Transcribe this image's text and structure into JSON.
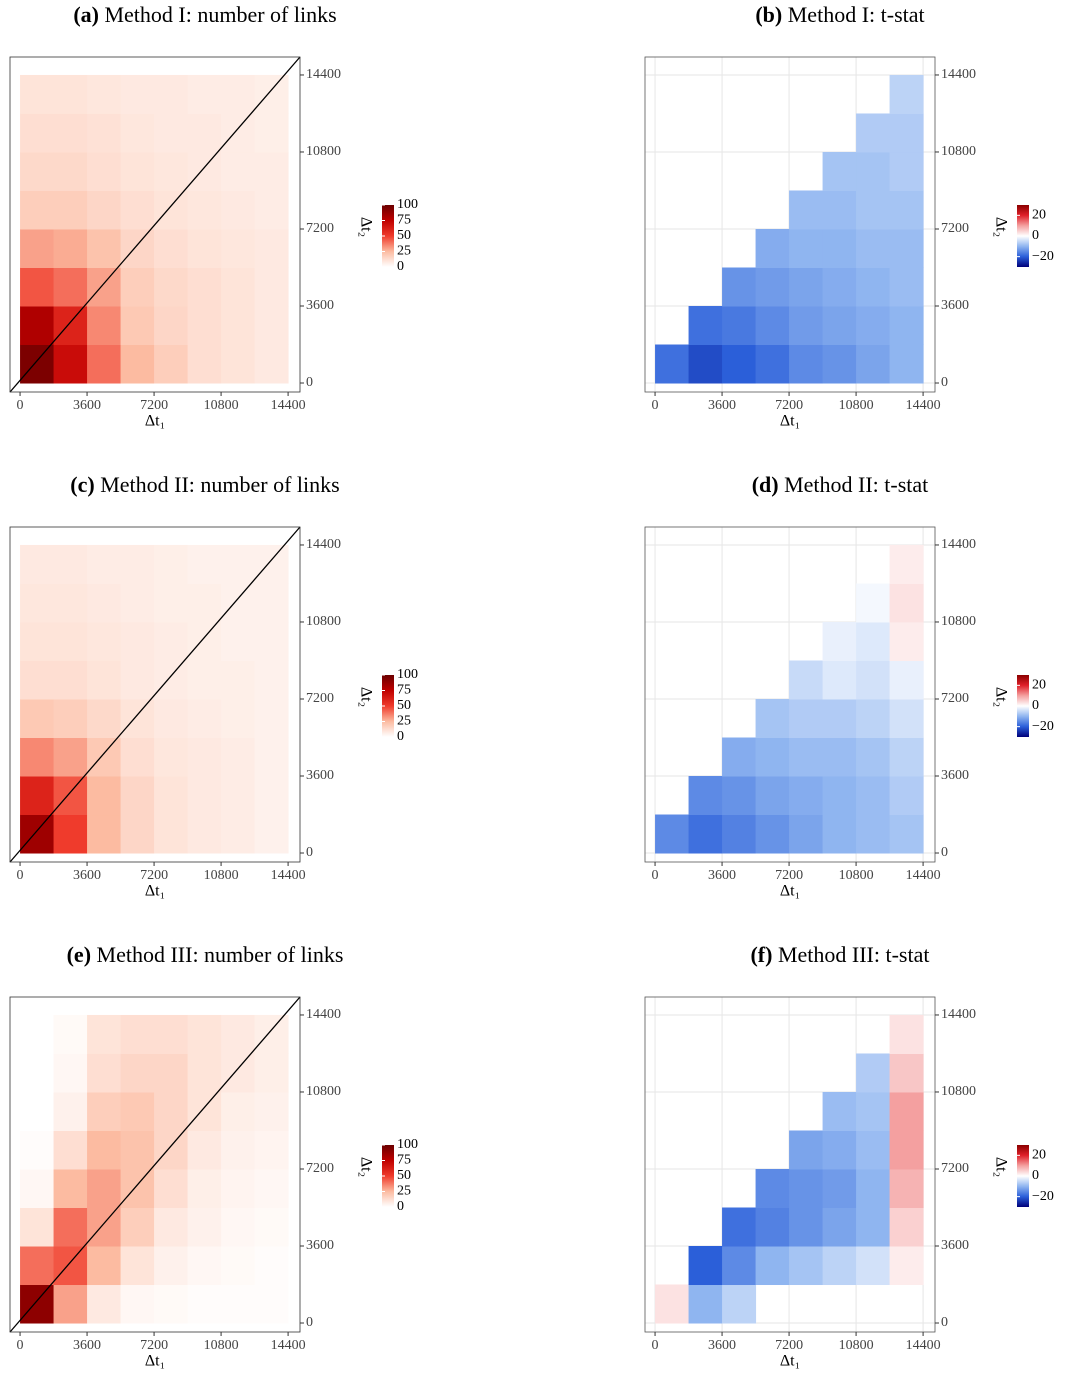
{
  "chart_data": [
    {
      "type": "heatmap",
      "label": "(a)",
      "title": "Method I: number of links",
      "xlabel": "Δt₁",
      "ylabel": "Δt₂",
      "x_bins": [
        0,
        1800,
        3600,
        5400,
        7200,
        9000,
        10800,
        12600,
        14400
      ],
      "y_bins": [
        0,
        1800,
        3600,
        5400,
        7200,
        9000,
        10800,
        12600,
        14400
      ],
      "z": [
        [
          95,
          70,
          40,
          25,
          18,
          12,
          10,
          8
        ],
        [
          80,
          60,
          35,
          20,
          15,
          12,
          10,
          8
        ],
        [
          45,
          40,
          30,
          18,
          14,
          12,
          10,
          8
        ],
        [
          30,
          28,
          22,
          15,
          12,
          10,
          9,
          8
        ],
        [
          18,
          18,
          15,
          12,
          10,
          9,
          8,
          7
        ],
        [
          14,
          14,
          12,
          10,
          9,
          8,
          7,
          7
        ],
        [
          12,
          12,
          11,
          9,
          8,
          8,
          7,
          6
        ],
        [
          10,
          10,
          9,
          8,
          8,
          7,
          7,
          6
        ]
      ],
      "xlim": [
        -540,
        15040
      ],
      "ylim": [
        -420,
        15240
      ],
      "xticks": [
        0,
        3600,
        7200,
        10800,
        14400
      ],
      "yticks": [
        0,
        3600,
        7200,
        10800,
        14400
      ],
      "grid": false,
      "diagonal": true,
      "colorscale": [
        "#ffffff",
        "#fcbba1",
        "#ef3b2c",
        "#c00000",
        "#6b0000"
      ],
      "colorbar_lim": [
        0,
        100
      ],
      "colorbar_ticks": [
        0,
        25,
        50,
        75,
        100
      ]
    },
    {
      "type": "heatmap",
      "label": "(b)",
      "title": "Method I: t-stat",
      "xlabel": "Δt₁",
      "ylabel": "Δt₂",
      "x_bins": [
        0,
        1800,
        3600,
        5400,
        7200,
        9000,
        10800,
        12600,
        14400
      ],
      "y_bins": [
        0,
        1800,
        3600,
        5400,
        7200,
        9000,
        10800,
        12600,
        14400
      ],
      "z": [
        [
          -18,
          -22,
          -20,
          -18,
          -15,
          -14,
          -12,
          -10
        ],
        [
          null,
          -18,
          -17,
          -15,
          -13,
          -12,
          -11,
          -10
        ],
        [
          null,
          null,
          -14,
          -13,
          -12,
          -11,
          -10,
          -9
        ],
        [
          null,
          null,
          null,
          -11,
          -10,
          -10,
          -9,
          -9
        ],
        [
          null,
          null,
          null,
          null,
          -9,
          -9,
          -8,
          -8
        ],
        [
          null,
          null,
          null,
          null,
          null,
          -8,
          -8,
          -7
        ],
        [
          null,
          null,
          null,
          null,
          null,
          null,
          -7,
          -7
        ],
        [
          null,
          null,
          null,
          null,
          null,
          null,
          null,
          -6
        ]
      ],
      "xlim": [
        -540,
        15040
      ],
      "ylim": [
        -420,
        15240
      ],
      "xticks": [
        0,
        3600,
        7200,
        10800,
        14400
      ],
      "yticks": [
        0,
        3600,
        7200,
        10800,
        14400
      ],
      "grid": true,
      "diagonal": false,
      "colorscale": [
        "#00007a",
        "#2b5fd9",
        "#8fb5f0",
        "#ffffff",
        "#f4a0a0",
        "#e0202a",
        "#8b0000"
      ],
      "colorbar_lim": [
        -30,
        30
      ],
      "colorbar_ticks": [
        {
          "value": -20,
          "label": "−20"
        },
        0,
        20
      ]
    },
    {
      "type": "heatmap",
      "label": "(c)",
      "title": "Method II: number of links",
      "xlabel": "Δt₁",
      "ylabel": "Δt₂",
      "x_bins": [
        0,
        1800,
        3600,
        5400,
        7200,
        9000,
        10800,
        12600,
        14400
      ],
      "y_bins": [
        0,
        1800,
        3600,
        5400,
        7200,
        9000,
        10800,
        12600,
        14400
      ],
      "z": [
        [
          85,
          50,
          25,
          15,
          10,
          8,
          7,
          5
        ],
        [
          60,
          45,
          25,
          15,
          10,
          8,
          7,
          5
        ],
        [
          35,
          30,
          20,
          12,
          9,
          8,
          7,
          5
        ],
        [
          20,
          18,
          14,
          10,
          8,
          7,
          6,
          5
        ],
        [
          12,
          12,
          10,
          8,
          7,
          6,
          6,
          5
        ],
        [
          10,
          10,
          9,
          8,
          7,
          6,
          5,
          5
        ],
        [
          9,
          9,
          8,
          7,
          6,
          6,
          5,
          5
        ],
        [
          8,
          8,
          7,
          7,
          6,
          5,
          5,
          5
        ]
      ],
      "xlim": [
        -540,
        15040
      ],
      "ylim": [
        -420,
        15240
      ],
      "xticks": [
        0,
        3600,
        7200,
        10800,
        14400
      ],
      "yticks": [
        0,
        3600,
        7200,
        10800,
        14400
      ],
      "grid": false,
      "diagonal": true,
      "colorscale": [
        "#ffffff",
        "#fcbba1",
        "#ef3b2c",
        "#c00000",
        "#6b0000"
      ],
      "colorbar_lim": [
        0,
        100
      ],
      "colorbar_ticks": [
        0,
        25,
        50,
        75,
        100
      ]
    },
    {
      "type": "heatmap",
      "label": "(d)",
      "title": "Method II: t-stat",
      "xlabel": "Δt₁",
      "ylabel": "Δt₂",
      "x_bins": [
        0,
        1800,
        3600,
        5400,
        7200,
        9000,
        10800,
        12600,
        14400
      ],
      "y_bins": [
        0,
        1800,
        3600,
        5400,
        7200,
        9000,
        10800,
        12600,
        14400
      ],
      "z": [
        [
          -15,
          -18,
          -16,
          -14,
          -12,
          -10,
          -9,
          -8
        ],
        [
          null,
          -15,
          -14,
          -12,
          -11,
          -10,
          -9,
          -7
        ],
        [
          null,
          null,
          -11,
          -10,
          -9,
          -9,
          -8,
          -6
        ],
        [
          null,
          null,
          null,
          -8,
          -7,
          -7,
          -6,
          -4
        ],
        [
          null,
          null,
          null,
          null,
          -5,
          -3,
          -4,
          -2
        ],
        [
          null,
          null,
          null,
          null,
          null,
          -2,
          -3,
          2
        ],
        [
          null,
          null,
          null,
          null,
          null,
          null,
          -1,
          3
        ],
        [
          null,
          null,
          null,
          null,
          null,
          null,
          null,
          2
        ]
      ],
      "xlim": [
        -540,
        15040
      ],
      "ylim": [
        -420,
        15240
      ],
      "xticks": [
        0,
        3600,
        7200,
        10800,
        14400
      ],
      "yticks": [
        0,
        3600,
        7200,
        10800,
        14400
      ],
      "grid": true,
      "diagonal": false,
      "colorscale": [
        "#00007a",
        "#2b5fd9",
        "#8fb5f0",
        "#ffffff",
        "#f4a0a0",
        "#e0202a",
        "#8b0000"
      ],
      "colorbar_lim": [
        -30,
        30
      ],
      "colorbar_ticks": [
        {
          "value": -20,
          "label": "−20"
        },
        0,
        20
      ]
    },
    {
      "type": "heatmap",
      "label": "(e)",
      "title": "Method III: number of links",
      "xlabel": "Δt₁",
      "ylabel": "Δt₂",
      "x_bins": [
        0,
        1800,
        3600,
        5400,
        7200,
        9000,
        10800,
        12600,
        14400
      ],
      "y_bins": [
        0,
        1800,
        3600,
        5400,
        7200,
        9000,
        10800,
        12600,
        14400
      ],
      "z": [
        [
          90,
          30,
          8,
          3,
          2,
          1,
          1,
          1
        ],
        [
          40,
          45,
          25,
          10,
          5,
          3,
          2,
          1
        ],
        [
          10,
          40,
          30,
          18,
          8,
          5,
          3,
          2
        ],
        [
          3,
          25,
          30,
          22,
          12,
          6,
          4,
          3
        ],
        [
          1,
          12,
          25,
          22,
          15,
          8,
          5,
          4
        ],
        [
          0,
          5,
          18,
          20,
          15,
          10,
          6,
          5
        ],
        [
          0,
          3,
          12,
          15,
          15,
          10,
          8,
          6
        ],
        [
          0,
          2,
          10,
          12,
          12,
          10,
          8,
          6
        ]
      ],
      "xlim": [
        -540,
        15040
      ],
      "ylim": [
        -420,
        15240
      ],
      "xticks": [
        0,
        3600,
        7200,
        10800,
        14400
      ],
      "yticks": [
        0,
        3600,
        7200,
        10800,
        14400
      ],
      "grid": false,
      "diagonal": true,
      "colorscale": [
        "#ffffff",
        "#fcbba1",
        "#ef3b2c",
        "#c00000",
        "#6b0000"
      ],
      "colorbar_lim": [
        0,
        100
      ],
      "colorbar_ticks": [
        0,
        25,
        50,
        75,
        100
      ]
    },
    {
      "type": "heatmap",
      "label": "(f)",
      "title": "Method III: t-stat",
      "xlabel": "Δt₁",
      "ylabel": "Δt₂",
      "x_bins": [
        0,
        1800,
        3600,
        5400,
        7200,
        9000,
        10800,
        12600,
        14400
      ],
      "y_bins": [
        0,
        1800,
        3600,
        5400,
        7200,
        9000,
        10800,
        12600,
        14400
      ],
      "z": [
        [
          3,
          -10,
          -6,
          null,
          null,
          null,
          null,
          null
        ],
        [
          null,
          -20,
          -15,
          -10,
          -8,
          -6,
          -4,
          2
        ],
        [
          null,
          null,
          -18,
          -16,
          -14,
          -12,
          -10,
          5
        ],
        [
          null,
          null,
          null,
          -15,
          -14,
          -13,
          -10,
          8
        ],
        [
          null,
          null,
          null,
          null,
          -12,
          -11,
          -9,
          10
        ],
        [
          null,
          null,
          null,
          null,
          null,
          -9,
          -8,
          10
        ],
        [
          null,
          null,
          null,
          null,
          null,
          null,
          -7,
          6
        ],
        [
          null,
          null,
          null,
          null,
          null,
          null,
          null,
          3
        ]
      ],
      "xlim": [
        -540,
        15040
      ],
      "ylim": [
        -420,
        15240
      ],
      "xticks": [
        0,
        3600,
        7200,
        10800,
        14400
      ],
      "yticks": [
        0,
        3600,
        7200,
        10800,
        14400
      ],
      "grid": true,
      "diagonal": false,
      "colorscale": [
        "#00007a",
        "#2b5fd9",
        "#8fb5f0",
        "#ffffff",
        "#f4a0a0",
        "#e0202a",
        "#8b0000"
      ],
      "colorbar_lim": [
        -30,
        30
      ],
      "colorbar_ticks": [
        {
          "value": -20,
          "label": "−20"
        },
        0,
        20
      ]
    }
  ]
}
